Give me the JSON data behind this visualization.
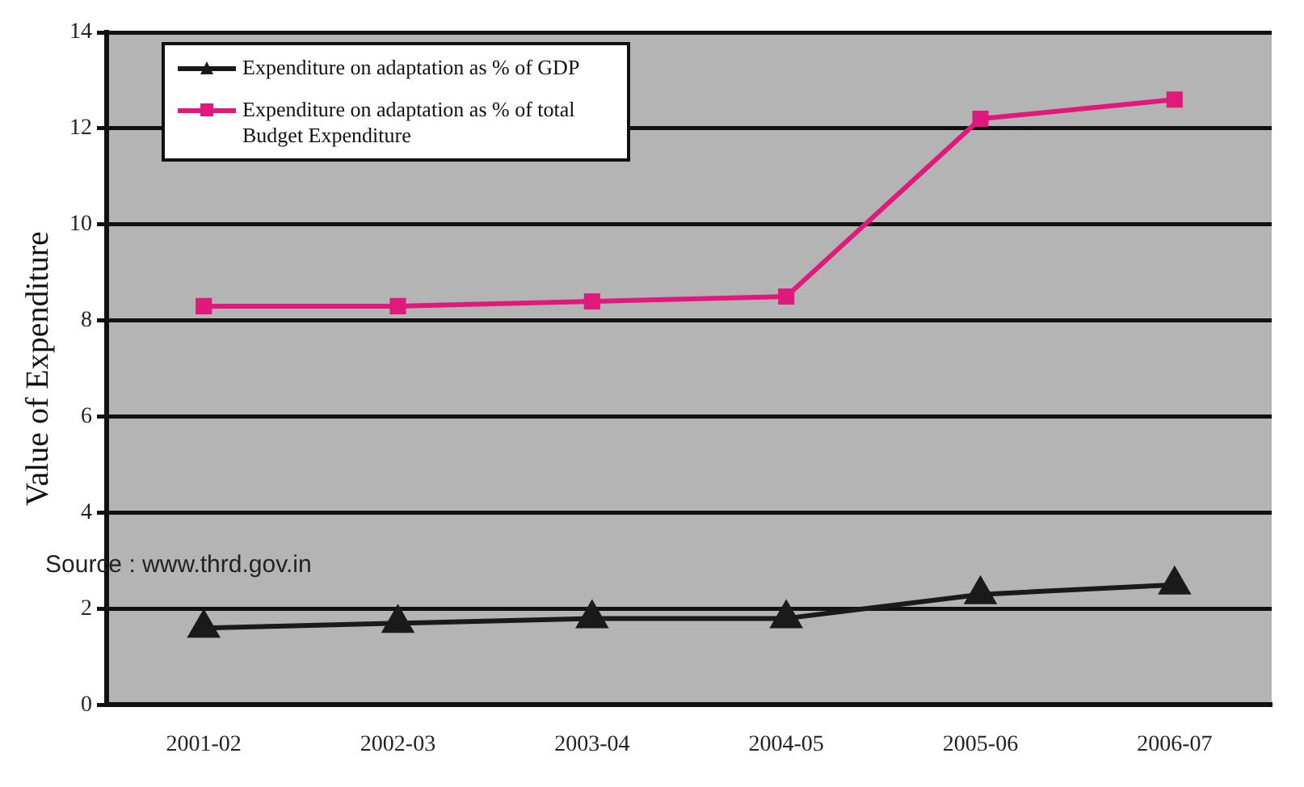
{
  "chart_data": {
    "type": "line",
    "ylabel": "Value of Expenditure",
    "categories": [
      "2001-02",
      "2002-03",
      "2003-04",
      "2004-05",
      "2005-06",
      "2006-07"
    ],
    "series": [
      {
        "name": "Expenditure on adaptation as % of GDP",
        "color": "#1a1a1a",
        "marker": "triangle",
        "values": [
          1.6,
          1.7,
          1.8,
          1.8,
          2.3,
          2.5
        ]
      },
      {
        "name": "Expenditure on adaptation as % of total Budget Expenditure",
        "color": "#e0197d",
        "marker": "square",
        "values": [
          8.3,
          8.3,
          8.4,
          8.5,
          12.2,
          12.6
        ]
      }
    ],
    "ylim": [
      0,
      14
    ],
    "yticks": [
      0,
      2,
      4,
      6,
      8,
      10,
      12,
      14
    ],
    "grid": "y",
    "legend": "top left",
    "line_style": "solid",
    "annotations": [
      "Source : www.thrd.gov.in"
    ]
  }
}
